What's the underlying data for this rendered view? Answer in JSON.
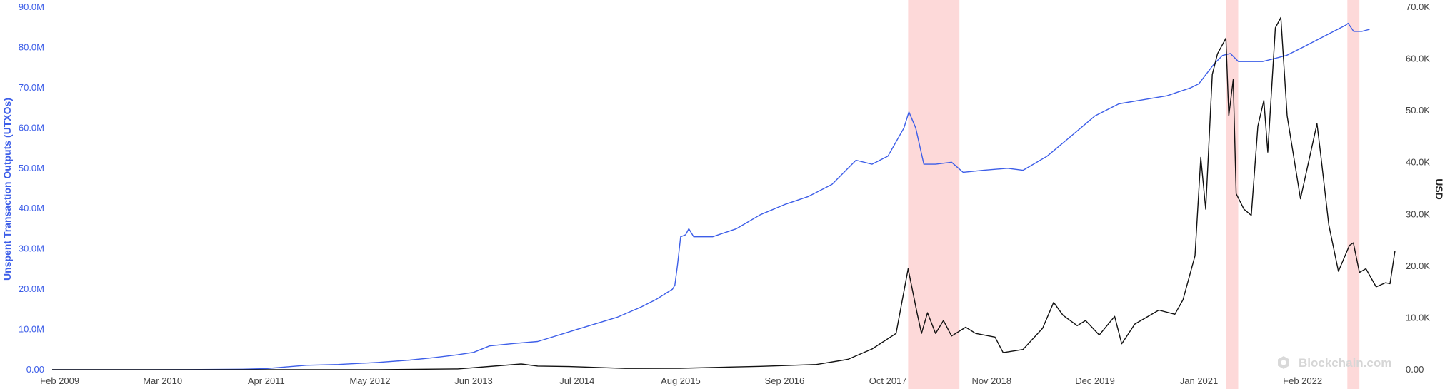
{
  "chart_data": {
    "type": "line",
    "x_axis": {
      "type": "date",
      "range": [
        "2009-01-03",
        "2023-01-20"
      ],
      "tick_labels": [
        {
          "date": "2009-02-01",
          "label": "Feb 2009"
        },
        {
          "date": "2010-03-01",
          "label": "Mar 2010"
        },
        {
          "date": "2011-04-01",
          "label": "Apr 2011"
        },
        {
          "date": "2012-05-01",
          "label": "May 2012"
        },
        {
          "date": "2013-06-01",
          "label": "Jun 2013"
        },
        {
          "date": "2014-07-01",
          "label": "Jul 2014"
        },
        {
          "date": "2015-08-01",
          "label": "Aug 2015"
        },
        {
          "date": "2016-09-01",
          "label": "Sep 2016"
        },
        {
          "date": "2017-10-01",
          "label": "Oct 2017"
        },
        {
          "date": "2018-11-01",
          "label": "Nov 2018"
        },
        {
          "date": "2019-12-01",
          "label": "Dec 2019"
        },
        {
          "date": "2021-01-01",
          "label": "Jan 2021"
        },
        {
          "date": "2022-02-01",
          "label": "Feb 2022"
        }
      ]
    },
    "y_left": {
      "label": "Unspent Transaction Outputs (UTXOs)",
      "range": [
        0,
        90000000
      ],
      "tick_values": [
        0,
        10000000,
        20000000,
        30000000,
        40000000,
        50000000,
        60000000,
        70000000,
        80000000,
        90000000
      ],
      "tick_labels": [
        "0.00",
        "10.0M",
        "20.0M",
        "30.0M",
        "40.0M",
        "50.0M",
        "60.0M",
        "70.0M",
        "80.0M",
        "90.0M"
      ],
      "color": "#3d5ee8"
    },
    "y_right": {
      "label": "USD",
      "range": [
        0,
        70000
      ],
      "tick_values": [
        0,
        10000,
        20000,
        30000,
        40000,
        50000,
        60000,
        70000
      ],
      "tick_labels": [
        "0.00",
        "10.0K",
        "20.0K",
        "30.0K",
        "40.0K",
        "50.0K",
        "60.0K",
        "70.0K"
      ],
      "color": "#444444"
    },
    "grid": false,
    "shaded_ranges": [
      {
        "start": "2017-12-17",
        "end": "2018-07-01",
        "color": "#fdd9d9"
      },
      {
        "start": "2021-04-14",
        "end": "2021-05-31",
        "color": "#fdd9d9"
      },
      {
        "start": "2022-07-22",
        "end": "2022-09-06",
        "color": "#fdd9d9"
      }
    ],
    "series": [
      {
        "axis": "left",
        "color": "#3d5ee8",
        "points": [
          [
            "2009-01-03",
            0
          ],
          [
            "2010-01-01",
            10000
          ],
          [
            "2010-06-01",
            40000
          ],
          [
            "2011-01-01",
            120000
          ],
          [
            "2011-04-01",
            280000
          ],
          [
            "2011-06-01",
            600000
          ],
          [
            "2011-09-01",
            1100000
          ],
          [
            "2012-01-01",
            1300000
          ],
          [
            "2012-06-01",
            1800000
          ],
          [
            "2012-10-01",
            2400000
          ],
          [
            "2013-01-01",
            3000000
          ],
          [
            "2013-04-01",
            3700000
          ],
          [
            "2013-06-01",
            4300000
          ],
          [
            "2013-08-01",
            5900000
          ],
          [
            "2013-11-01",
            6500000
          ],
          [
            "2014-02-01",
            7000000
          ],
          [
            "2014-07-01",
            10000000
          ],
          [
            "2014-12-01",
            13000000
          ],
          [
            "2015-03-01",
            15500000
          ],
          [
            "2015-05-01",
            17500000
          ],
          [
            "2015-07-01",
            20000000
          ],
          [
            "2015-07-10",
            21000000
          ],
          [
            "2015-07-20",
            26000000
          ],
          [
            "2015-08-01",
            33000000
          ],
          [
            "2015-08-20",
            33500000
          ],
          [
            "2015-09-01",
            35000000
          ],
          [
            "2015-09-20",
            33000000
          ],
          [
            "2015-12-01",
            33000000
          ],
          [
            "2016-03-01",
            35000000
          ],
          [
            "2016-06-01",
            38500000
          ],
          [
            "2016-09-01",
            41000000
          ],
          [
            "2016-12-01",
            43000000
          ],
          [
            "2017-03-01",
            46000000
          ],
          [
            "2017-06-01",
            52000000
          ],
          [
            "2017-08-01",
            51000000
          ],
          [
            "2017-10-01",
            53000000
          ],
          [
            "2017-12-01",
            60000000
          ],
          [
            "2017-12-20",
            64000000
          ],
          [
            "2018-01-15",
            60000000
          ],
          [
            "2018-02-15",
            51000000
          ],
          [
            "2018-04-01",
            51000000
          ],
          [
            "2018-06-01",
            51500000
          ],
          [
            "2018-07-15",
            49000000
          ],
          [
            "2018-10-01",
            49500000
          ],
          [
            "2019-01-01",
            50000000
          ],
          [
            "2019-03-01",
            49500000
          ],
          [
            "2019-06-01",
            53000000
          ],
          [
            "2019-09-01",
            58000000
          ],
          [
            "2019-12-01",
            63000000
          ],
          [
            "2020-03-01",
            66000000
          ],
          [
            "2020-06-01",
            67000000
          ],
          [
            "2020-09-01",
            68000000
          ],
          [
            "2020-12-01",
            70000000
          ],
          [
            "2021-01-01",
            71000000
          ],
          [
            "2021-03-01",
            76000000
          ],
          [
            "2021-04-01",
            78000000
          ],
          [
            "2021-05-01",
            78500000
          ],
          [
            "2021-06-01",
            76500000
          ],
          [
            "2021-09-01",
            76500000
          ],
          [
            "2021-12-01",
            78000000
          ],
          [
            "2022-02-01",
            80000000
          ],
          [
            "2022-05-01",
            83000000
          ],
          [
            "2022-07-15",
            85500000
          ],
          [
            "2022-07-25",
            86000000
          ],
          [
            "2022-08-15",
            84000000
          ],
          [
            "2022-09-15",
            84000000
          ],
          [
            "2022-10-15",
            84500000
          ]
        ]
      },
      {
        "axis": "right",
        "color": "#111111",
        "points": [
          [
            "2009-01-03",
            0
          ],
          [
            "2010-07-01",
            0
          ],
          [
            "2011-06-01",
            20
          ],
          [
            "2012-06-01",
            7
          ],
          [
            "2013-04-01",
            150
          ],
          [
            "2013-11-30",
            1100
          ],
          [
            "2014-02-01",
            700
          ],
          [
            "2014-06-01",
            600
          ],
          [
            "2015-01-01",
            250
          ],
          [
            "2015-08-01",
            280
          ],
          [
            "2016-06-01",
            650
          ],
          [
            "2017-01-01",
            1000
          ],
          [
            "2017-05-01",
            2000
          ],
          [
            "2017-08-01",
            4000
          ],
          [
            "2017-11-01",
            7000
          ],
          [
            "2017-12-17",
            19500
          ],
          [
            "2018-01-20",
            11000
          ],
          [
            "2018-02-06",
            7000
          ],
          [
            "2018-03-01",
            11000
          ],
          [
            "2018-04-01",
            7000
          ],
          [
            "2018-05-01",
            9500
          ],
          [
            "2018-06-01",
            6500
          ],
          [
            "2018-07-25",
            8200
          ],
          [
            "2018-09-01",
            7000
          ],
          [
            "2018-11-14",
            6300
          ],
          [
            "2018-12-15",
            3300
          ],
          [
            "2019-03-01",
            3900
          ],
          [
            "2019-05-15",
            8000
          ],
          [
            "2019-06-26",
            13000
          ],
          [
            "2019-08-01",
            10500
          ],
          [
            "2019-09-24",
            8500
          ],
          [
            "2019-10-26",
            9500
          ],
          [
            "2019-12-17",
            6700
          ],
          [
            "2020-02-14",
            10300
          ],
          [
            "2020-03-12",
            5000
          ],
          [
            "2020-05-01",
            8800
          ],
          [
            "2020-08-01",
            11500
          ],
          [
            "2020-10-01",
            10700
          ],
          [
            "2020-11-01",
            13500
          ],
          [
            "2020-12-17",
            22000
          ],
          [
            "2021-01-08",
            41000
          ],
          [
            "2021-01-27",
            31000
          ],
          [
            "2021-02-21",
            57000
          ],
          [
            "2021-03-13",
            61000
          ],
          [
            "2021-04-14",
            64000
          ],
          [
            "2021-04-25",
            49000
          ],
          [
            "2021-05-12",
            56000
          ],
          [
            "2021-05-23",
            34000
          ],
          [
            "2021-06-22",
            31000
          ],
          [
            "2021-07-20",
            29800
          ],
          [
            "2021-08-14",
            47000
          ],
          [
            "2021-09-06",
            52000
          ],
          [
            "2021-09-21",
            42000
          ],
          [
            "2021-10-20",
            66000
          ],
          [
            "2021-11-10",
            68000
          ],
          [
            "2021-12-04",
            49000
          ],
          [
            "2022-01-24",
            33000
          ],
          [
            "2022-03-28",
            47500
          ],
          [
            "2022-04-10",
            42000
          ],
          [
            "2022-05-12",
            28000
          ],
          [
            "2022-06-18",
            19000
          ],
          [
            "2022-07-30",
            24000
          ],
          [
            "2022-08-14",
            24500
          ],
          [
            "2022-09-06",
            18800
          ],
          [
            "2022-10-01",
            19500
          ],
          [
            "2022-11-09",
            16000
          ],
          [
            "2022-12-15",
            16800
          ],
          [
            "2023-01-01",
            16600
          ],
          [
            "2023-01-20",
            23000
          ]
        ]
      }
    ],
    "watermark": "Blockchain.com"
  }
}
